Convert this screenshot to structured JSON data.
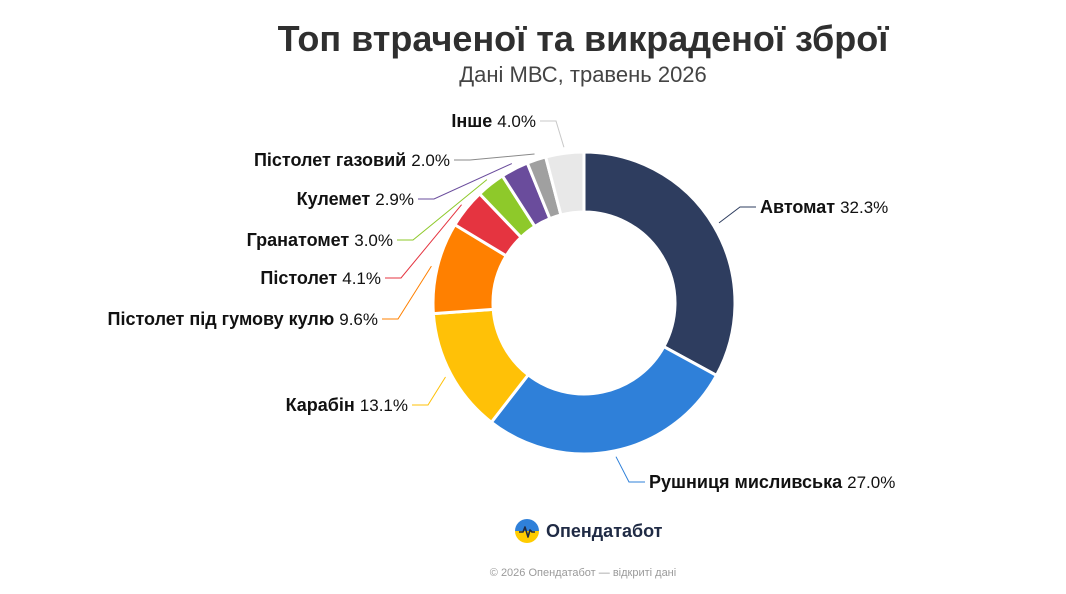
{
  "header": {
    "title": "Топ втраченої та викраденої зброї",
    "subtitle": "Дані МВС, травень 2026"
  },
  "brand": {
    "name": "Опендатабот"
  },
  "footer": {
    "text": "© 2026 Опендатабот — відкриті дані"
  },
  "chart_data": {
    "type": "pie",
    "subtype": "donut",
    "categories": [
      "Автомат",
      "Рушниця мисливська",
      "Карабін",
      "Пістолет під гумову кулю",
      "Пістолет",
      "Гранатомет",
      "Кулемет",
      "Пістолет газовий",
      "Інше"
    ],
    "values": [
      32.3,
      27.0,
      13.1,
      9.6,
      4.1,
      3.0,
      2.9,
      2.0,
      4.0
    ],
    "labels": [
      "32.3%",
      "27.0%",
      "13.1%",
      "9.6%",
      "4.1%",
      "3.0%",
      "2.9%",
      "2.0%",
      "4.0%"
    ],
    "colors": [
      "#2e3d5f",
      "#2f80d9",
      "#ffc107",
      "#ff8000",
      "#e53440",
      "#8ec92a",
      "#6a4c9c",
      "#a0a0a0",
      "#e8e8e8"
    ],
    "connector_colors": [
      "#2e3d5f",
      "#2f80d9",
      "#ffc107",
      "#ff8000",
      "#e53440",
      "#8ec92a",
      "#6a4c9c",
      "#8a8a8a",
      "#c8c8c8"
    ],
    "slice_border_color": "#ffffff",
    "legend": "none"
  }
}
